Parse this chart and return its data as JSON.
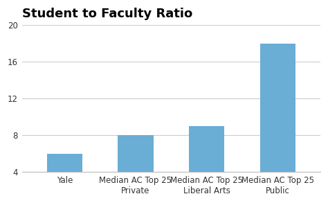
{
  "title": "Student to Faculty Ratio",
  "categories": [
    "Yale",
    "Median AC Top 25\nPrivate",
    "Median AC Top 25\nLiberal Arts",
    "Median AC Top 25\nPublic"
  ],
  "values": [
    6,
    8,
    9,
    18
  ],
  "bar_color": "#6aadd5",
  "ylim": [
    4,
    20
  ],
  "yticks": [
    4,
    8,
    12,
    16,
    20
  ],
  "background_color": "#ffffff",
  "title_fontsize": 13,
  "tick_fontsize": 8.5,
  "bar_width": 0.5,
  "grid_color": "#cccccc",
  "bottom_spine_color": "#bbbbbb"
}
